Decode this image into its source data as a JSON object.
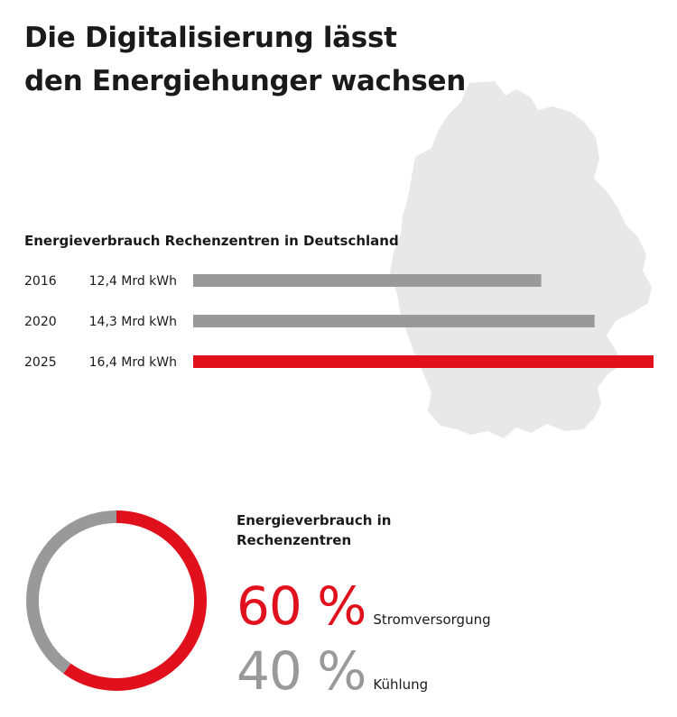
{
  "title_lines": [
    "Die Digitalisierung lässt",
    "den Energiehunger wachsen"
  ],
  "colors": {
    "red": "#e0101d",
    "grey": "#999999",
    "map": "#e8e8e8"
  },
  "chart_data": [
    {
      "type": "bar",
      "title": "Energieverbrauch Rechenzentren in Deutschland",
      "categories": [
        "2016",
        "2020",
        "2025"
      ],
      "value_labels": [
        "12,4 Mrd kWh",
        "14,3 Mrd kWh",
        "16,4 Mrd kWh"
      ],
      "values": [
        12.4,
        14.3,
        16.4
      ],
      "unit": "Mrd kWh",
      "highlight_index": 2
    },
    {
      "type": "pie",
      "title": "Energieverbrauch in Rechenzentren",
      "slices": [
        {
          "name": "Stromversorgung",
          "value": 60,
          "label": "60 %"
        },
        {
          "name": "Kühlung",
          "value": 40,
          "label": "40 %"
        }
      ]
    }
  ]
}
